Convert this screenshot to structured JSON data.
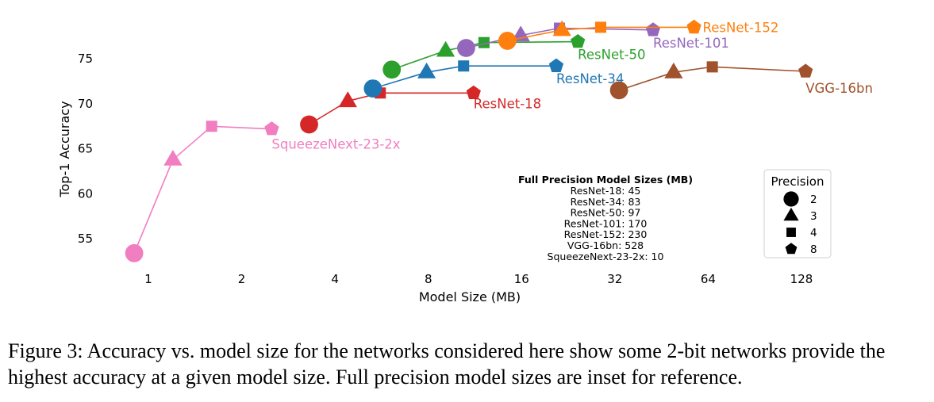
{
  "chart_data": {
    "type": "line",
    "xlabel": "Model Size (MB)",
    "ylabel": "Top-1 Accuracy",
    "x_scale": "log2",
    "xlim": [
      0.8,
      180
    ],
    "ylim": [
      52.5,
      79.5
    ],
    "x_ticks": [
      1,
      2,
      4,
      8,
      16,
      32,
      64,
      128
    ],
    "x_tick_labels": [
      "1",
      "2",
      "4",
      "8",
      "16",
      "32",
      "64",
      "128"
    ],
    "y_ticks": [
      55,
      60,
      65,
      70,
      75
    ],
    "y_tick_labels": [
      "55",
      "60",
      "65",
      "70",
      "75"
    ],
    "grid": false,
    "marker_encoding": {
      "2": "circle",
      "3": "triangle",
      "4": "square",
      "8": "pentagon"
    },
    "series": [
      {
        "name": "ResNet-18",
        "color": "#d62728",
        "points": [
          {
            "bits": 2,
            "x": 3.3,
            "y": 67.6
          },
          {
            "bits": 3,
            "x": 4.4,
            "y": 70.2
          },
          {
            "bits": 4,
            "x": 5.6,
            "y": 71.1
          },
          {
            "bits": 8,
            "x": 11.2,
            "y": 71.1
          }
        ]
      },
      {
        "name": "ResNet-34",
        "color": "#1f77b4",
        "points": [
          {
            "bits": 2,
            "x": 5.3,
            "y": 71.6
          },
          {
            "bits": 3,
            "x": 7.9,
            "y": 73.4
          },
          {
            "bits": 4,
            "x": 10.4,
            "y": 74.1
          },
          {
            "bits": 8,
            "x": 20.7,
            "y": 74.1
          }
        ]
      },
      {
        "name": "ResNet-50",
        "color": "#2ca02c",
        "points": [
          {
            "bits": 2,
            "x": 6.1,
            "y": 73.7
          },
          {
            "bits": 3,
            "x": 9.1,
            "y": 75.8
          },
          {
            "bits": 4,
            "x": 12.1,
            "y": 76.7
          },
          {
            "bits": 8,
            "x": 24.3,
            "y": 76.8
          }
        ]
      },
      {
        "name": "ResNet-101",
        "color": "#9467bd",
        "points": [
          {
            "bits": 2,
            "x": 10.6,
            "y": 76.1
          },
          {
            "bits": 3,
            "x": 15.9,
            "y": 77.5
          },
          {
            "bits": 4,
            "x": 21.2,
            "y": 78.3
          },
          {
            "bits": 8,
            "x": 42.5,
            "y": 78.1
          }
        ]
      },
      {
        "name": "ResNet-152",
        "color": "#ff7f0e",
        "points": [
          {
            "bits": 2,
            "x": 14.4,
            "y": 76.9
          },
          {
            "bits": 3,
            "x": 21.6,
            "y": 78.1
          },
          {
            "bits": 4,
            "x": 28.8,
            "y": 78.4
          },
          {
            "bits": 8,
            "x": 57.6,
            "y": 78.4
          }
        ]
      },
      {
        "name": "VGG-16bn",
        "color": "#a0522d",
        "points": [
          {
            "bits": 2,
            "x": 33,
            "y": 71.4
          },
          {
            "bits": 3,
            "x": 49.5,
            "y": 73.4
          },
          {
            "bits": 4,
            "x": 66,
            "y": 74
          },
          {
            "bits": 8,
            "x": 132,
            "y": 73.5
          }
        ]
      },
      {
        "name": "SqueezeNext-23-2x",
        "color": "#f07ec0",
        "points": [
          {
            "bits": 2,
            "x": 0.9,
            "y": 53.3
          },
          {
            "bits": 3,
            "x": 1.2,
            "y": 63.7
          },
          {
            "bits": 4,
            "x": 1.6,
            "y": 67.4
          },
          {
            "bits": 8,
            "x": 2.5,
            "y": 67.1
          }
        ]
      }
    ],
    "inset": {
      "title": "Full Precision Model Sizes (MB)",
      "lines": [
        "ResNet-18: 45",
        "ResNet-34: 83",
        "ResNet-50: 97",
        "ResNet-101: 170",
        "ResNet-152: 230",
        "VGG-16bn: 528",
        "SqueezeNext-23-2x: 10"
      ]
    },
    "legend": {
      "title": "Precision",
      "placement": "lower-right",
      "entries": [
        {
          "marker": "circle",
          "label": "2"
        },
        {
          "marker": "triangle",
          "label": "3"
        },
        {
          "marker": "square",
          "label": "4"
        },
        {
          "marker": "pentagon",
          "label": "8"
        }
      ]
    }
  },
  "caption": "Figure 3:   Accuracy vs. model size for the networks considered here show some 2-bit networks provide the highest accuracy at a given model size. Full precision model sizes are inset for reference."
}
